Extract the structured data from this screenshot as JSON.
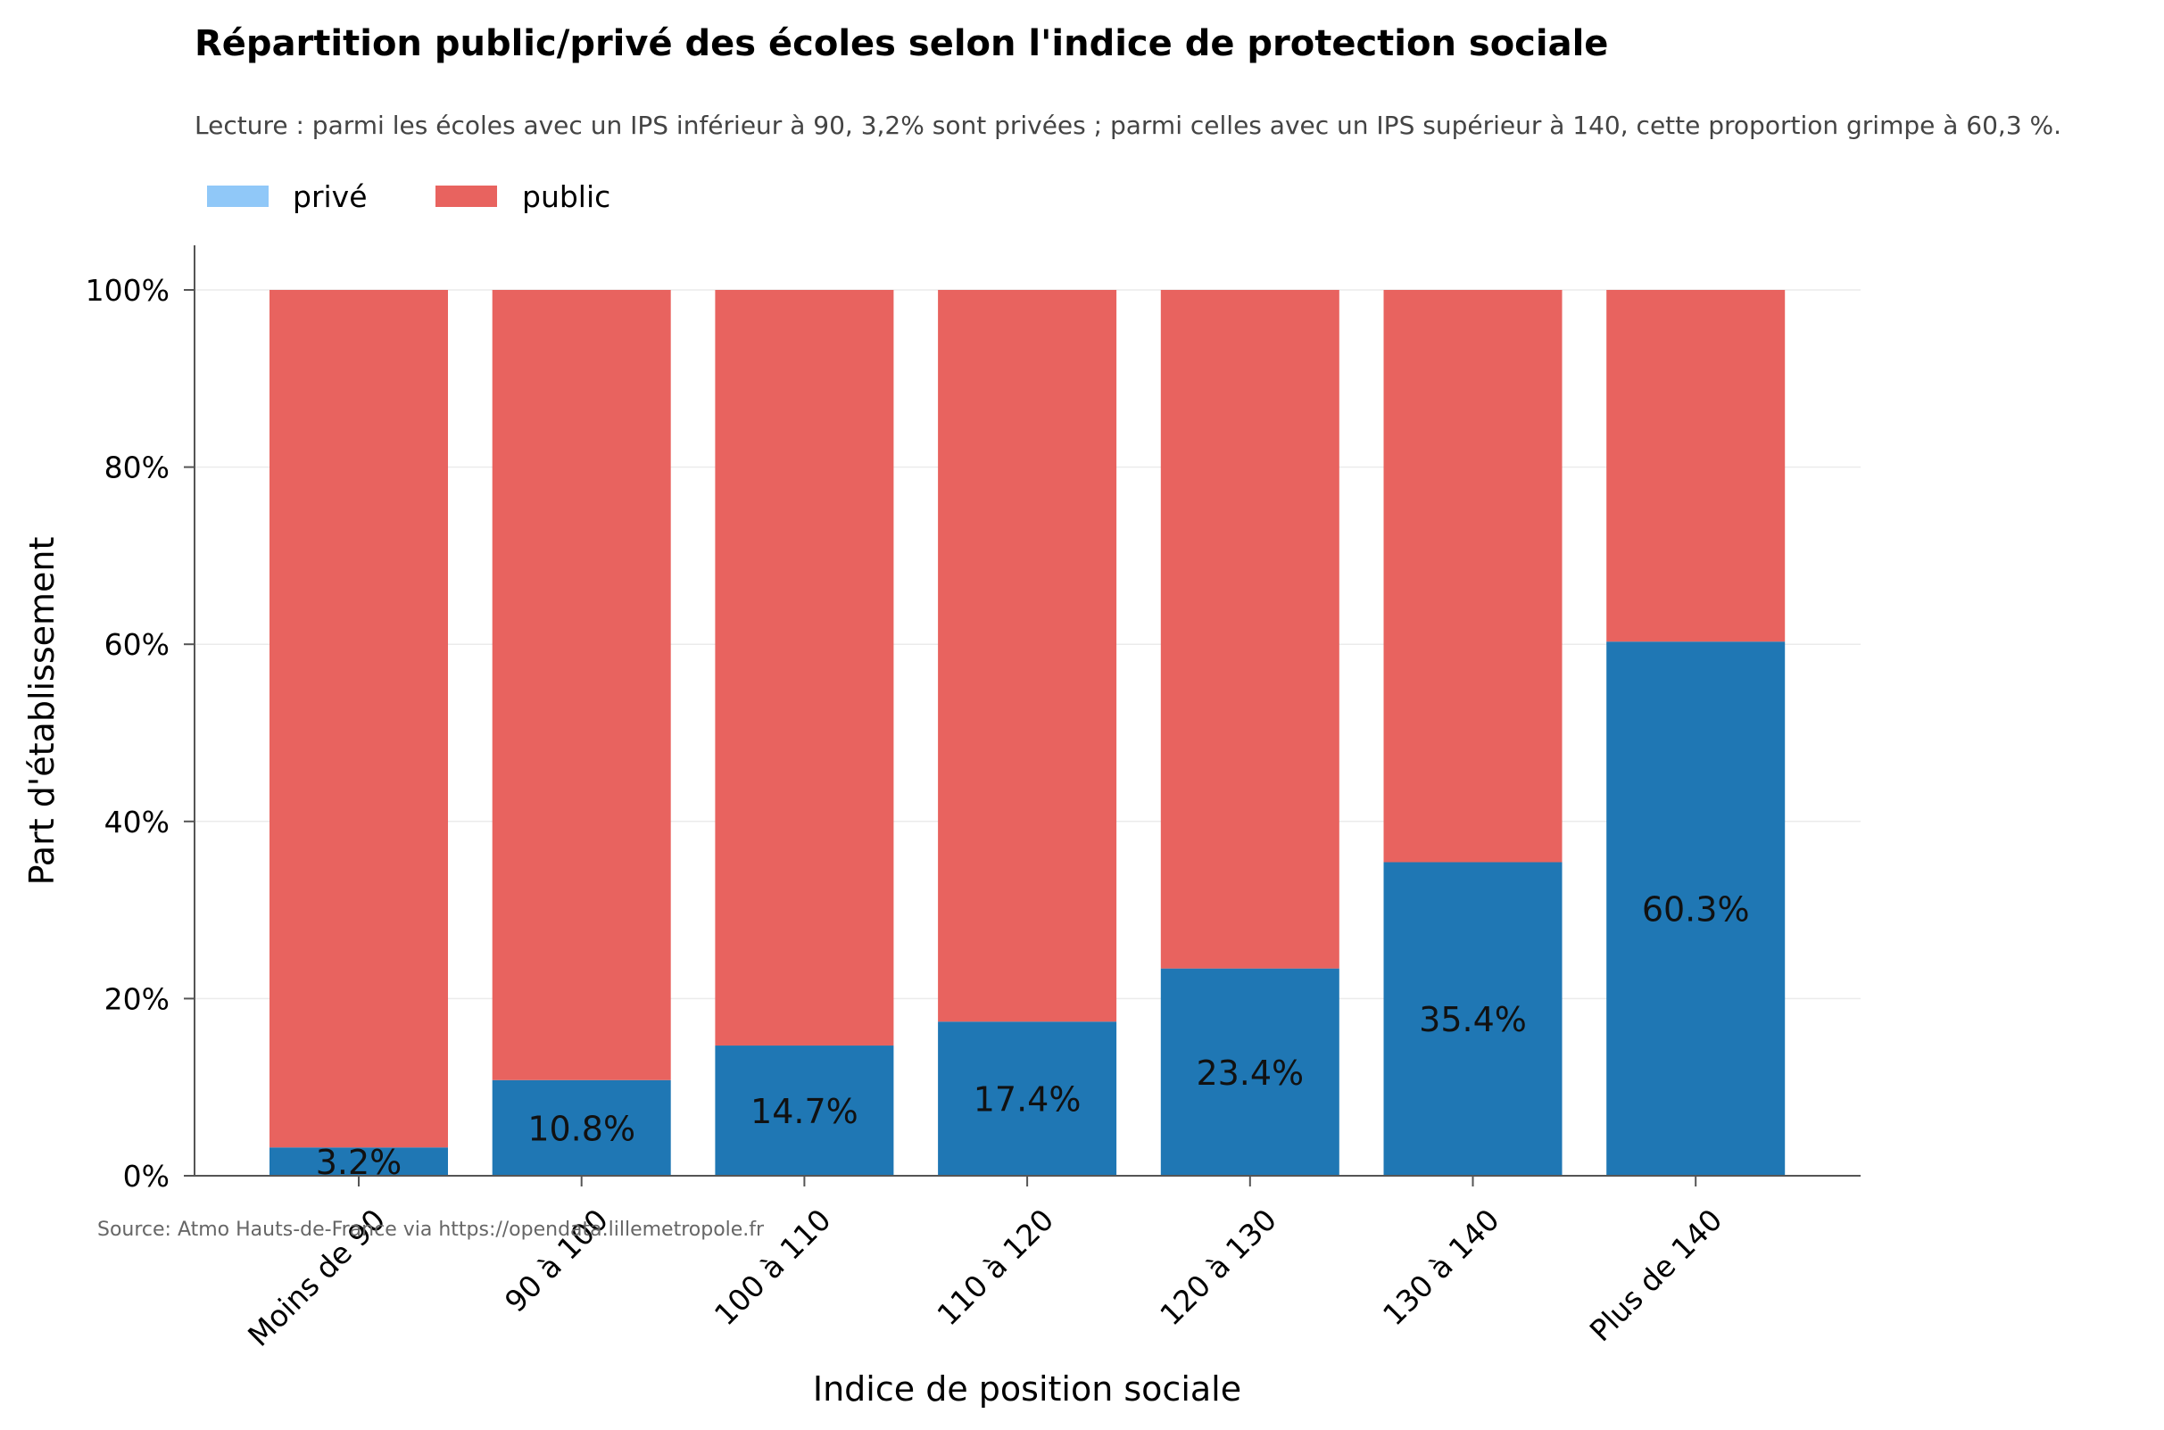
{
  "chart_data": {
    "type": "bar",
    "stacked": true,
    "percent_stacked": true,
    "title": "Répartition public/privé des écoles selon l'indice de protection sociale",
    "subtitle": "Lecture : parmi les écoles avec un IPS inférieur à 90, 3,2% sont privées ; parmi celles avec un IPS supérieur à 140, cette proportion grimpe à 60,3 %.",
    "xlabel": "Indice de position sociale",
    "ylabel": "Part d'établissement",
    "ylim": [
      0,
      105
    ],
    "yticks": [
      0,
      20,
      40,
      60,
      80,
      100
    ],
    "ytick_labels": [
      "0%",
      "20%",
      "40%",
      "60%",
      "80%",
      "100%"
    ],
    "grid": true,
    "legend_position": "top-left",
    "categories": [
      "Moins de 90",
      "90 à 100",
      "100 à 110",
      "110 à 120",
      "120 à 130",
      "130 à 140",
      "Plus de 140"
    ],
    "series": [
      {
        "name": "privé",
        "color": "#1f77b4",
        "legend_color": "#90c8f8",
        "values": [
          3.2,
          10.8,
          14.7,
          17.4,
          23.4,
          35.4,
          60.3
        ],
        "labels": [
          "3.2%",
          "10.8%",
          "14.7%",
          "17.4%",
          "23.4%",
          "35.4%",
          "60.3%"
        ]
      },
      {
        "name": "public",
        "color": "#e8635f",
        "legend_color": "#e8635f",
        "values": [
          96.8,
          89.2,
          85.3,
          82.6,
          76.6,
          64.6,
          39.7
        ]
      }
    ],
    "source": "Source: Atmo Hauts-de-France via https://opendata.lillemetropole.fr"
  }
}
